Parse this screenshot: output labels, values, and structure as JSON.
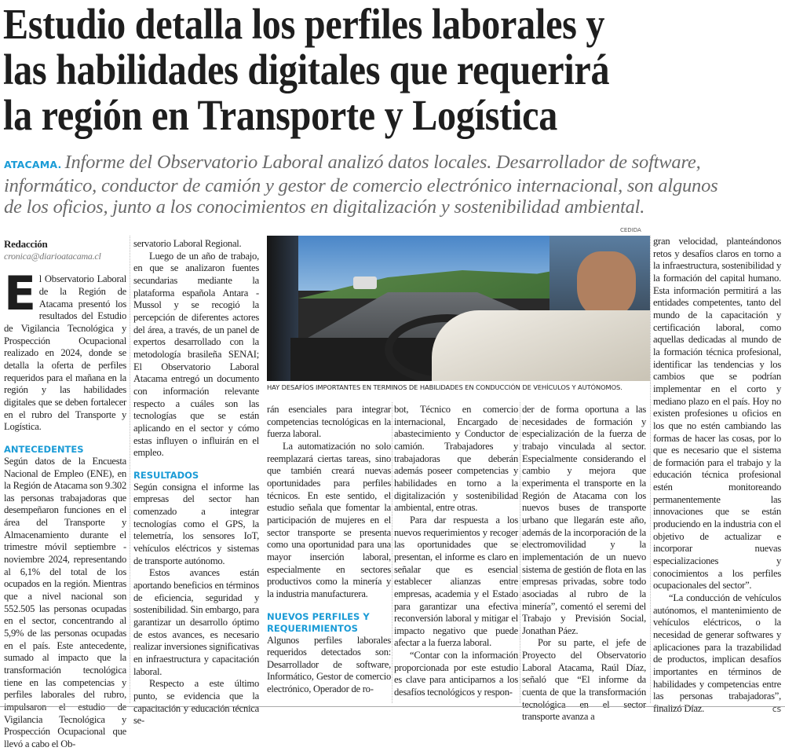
{
  "headline": {
    "lines": [
      "Estudio detalla los perfiles laborales y",
      "las habilidades digitales que requerirá",
      "la región en Transporte y Logística"
    ]
  },
  "deck": {
    "kicker": "ATACAMA.",
    "lines": [
      "Informe del Observatorio Laboral analizó datos locales. Desarrollador de software,",
      "informático, conductor de camión y gestor de comercio electrónico internacional, son algunos",
      "de los oficios, junto a los conocimientos en digitalización y sostenibilidad ambiental."
    ]
  },
  "photo": {
    "credit": "CEDIDA",
    "caption": "HAY DESAFÍOS IMPORTANTES EN TERMINOS DE HABILIDADES EN CONDUCCIÓN DE VEHÍCULOS Y AUTÓNOMOS."
  },
  "colors": {
    "accent": "#1a9bd6",
    "deck": "#6a6a6a",
    "text": "#222222"
  },
  "byline": {
    "author": "Redacción",
    "email": "cronica@diarioatacama.cl"
  },
  "col1": {
    "dropcap": "E",
    "p1": "l Observatorio Laboral de la Región de Atacama presentó los resultados del Estudio de Vigilancia Tecnológica y Prospección Ocupacional realizado en 2024, donde se detalla la oferta de perfiles requeridos para el mañana en la región y las habilidades digitales que se deben fortalecer en el rubro del Transporte y Logística.",
    "heading": "ANTECEDENTES",
    "p2": "Según datos de la Encuesta Nacional de Empleo (ENE), en la Región de Atacama son 9.302 las personas trabajadoras que desempeñaron funciones en el área del Transporte y Almacenamiento durante el trimestre móvil septiembre - noviembre 2024, representando al 6,1% del total de los ocupados en la región. Mientras que a nivel nacional son 552.505 las personas ocupadas en el sector, concentrando al 5,9% de las personas ocupadas en el país. Este antecedente, sumado al impacto que la transformación tecnológica tiene en las competencias y perfiles laborales del rubro, impulsaron el estudio de Vigilancia Tecnológica y Prospección Ocupacional que llevó a cabo el Ob-"
  },
  "col2": {
    "p1": "servatorio Laboral Regional.",
    "p2": "Luego de un año de trabajo, en que se analizaron fuentes secundarias mediante la plataforma española Antara - Mussol y se recogió la percepción de diferentes actores del área, a través, de un panel de expertos desarrollado con la metodología brasileña SENAI; El Observatorio Laboral Atacama entregó un documento con información relevante respecto a cuáles son las tecnologías que se están aplicando en el sector y cómo estas influyen o influirán en el empleo.",
    "heading": "RESULTADOS",
    "p3": "Según consigna el informe las empresas del sector han comenzado a integrar tecnologías como el GPS, la telemetría, los sensores IoT, vehículos eléctricos y sistemas de transporte autónomo.",
    "p4": "Estos avances están aportando beneficios en términos de eficiencia, seguridad y sostenibilidad. Sin embargo, para garantizar un desarrollo óptimo de estos avances, es necesario realizar inversiones significativas en infraestructura y capacitación laboral.",
    "p5": "Respecto a este último punto, se evidencia que la capacitación y educación técnica se-"
  },
  "col3": {
    "p1": "rán esenciales para integrar competencias tecnológicas en la fuerza laboral.",
    "p2": "La automatización no solo reemplazará ciertas tareas, sino que también creará nuevas oportunidades para perfiles técnicos. En este sentido, el estudio señala que fomentar la participación de mujeres en el sector transporte se presenta como una oportunidad para una mayor inserción laboral, especialmente en sectores productivos como la minería y la industria manufacturera.",
    "heading": "NUEVOS PERFILES Y REQUERIMIENTOS",
    "p3": "Algunos perfiles laborales requeridos detectados son: Desarrollador de software, Informático, Gestor de comercio electrónico, Operador de ro-"
  },
  "col4": {
    "p1": "bot, Técnico en comercio internacional, Encargado de abastecimiento y Conductor de camión. Trabajadores y trabajadoras que deberán además poseer competencias y habilidades en torno a la digitalización y sostenibilidad ambiental, entre otras.",
    "p2": "Para dar respuesta a los nuevos requerimientos y recoger las oportunidades que se presentan, el informe es claro en señalar que es esencial establecer alianzas entre empresas, academia y el Estado para garantizar una efectiva reconversión laboral y mitigar el impacto negativo que puede afectar a la fuerza laboral.",
    "p3": "“Contar con la información proporcionada por este estudio es clave para anticiparnos a los desafíos tecnológicos y respon-"
  },
  "col5": {
    "p1": "der de forma oportuna a las necesidades de formación y especialización de la fuerza de trabajo vinculada al sector. Especialmente considerando el cambio y mejora que experimenta el transporte en la Región de Atacama con los nuevos buses de transporte urbano que llegarán este año, además de la incorporación de la electromovilidad y la implementación de un nuevo sistema de gestión de flota en las empresas privadas, sobre todo asociadas al rubro de la minería”, comentó el seremi del Trabajo y Previsión Social, Jonathan Páez.",
    "p2": "Por su parte, el jefe de Proyecto del Observatorio Laboral Atacama, Raúl Díaz, señaló que “El informe da cuenta de que la transformación tecnológica en el sector transporte avanza a"
  },
  "col6": {
    "p1": "gran velocidad, planteándonos retos y desafíos claros en torno a la infraestructura, sostenibilidad y la formación del capital humano. Esta información permitirá a las entidades competentes, tanto del mundo de la capacitación y certificación laboral, como aquellas dedicadas al mundo de la formación técnica profesional, identificar las tendencias y los cambios que se podrían implementar en el corto y mediano plazo en el país. Hoy no existen profesiones u oficios en los que no estén cambiando las formas de hacer las cosas, por lo que es necesario que el sistema de formación para el trabajo y la educación técnica profesional estén monitoreando permanentemente las innovaciones que se están produciendo en la industria con el objetivo de actualizar e incorporar nuevas especializaciones y conocimientos a los perfiles ocupacionales del sector”.",
    "p2": "“La conducción de vehículos autónomos, el mantenimiento de vehículos eléctricos, o la necesidad de generar softwares y aplicaciones para la trazabilidad de productos, implican desafíos importantes en términos de habilidades y competencias entre las personas trabajadoras”, finalizó Díaz.",
    "endmark": "cs"
  }
}
